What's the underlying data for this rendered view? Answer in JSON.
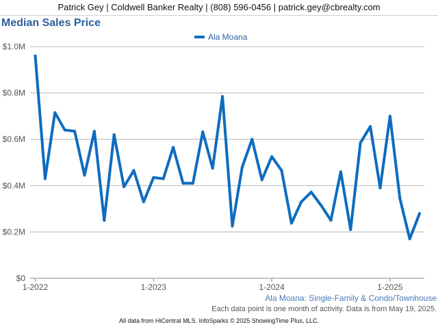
{
  "header": {
    "contact": "Patrick Gey | Coldwell Banker Realty | (808) 596-0456 | patrick.gey@cbrealty.com"
  },
  "chart_data": {
    "type": "line",
    "title": "Median Sales Price",
    "y_ticks": [
      "$0",
      "$0.2M",
      "$0.4M",
      "$0.6M",
      "$0.8M",
      "$1.0M"
    ],
    "ylim": [
      0,
      1000000
    ],
    "x_ticks": [
      "1-2022",
      "1-2023",
      "1-2024",
      "1-2025"
    ],
    "x_start": "2022-01",
    "grid": true,
    "legend_placement": "top-center",
    "series": [
      {
        "name": "Ala Moana",
        "color": "#0f6cbf",
        "values": [
          960000,
          430000,
          715000,
          640000,
          635000,
          445000,
          635000,
          250000,
          620000,
          395000,
          465000,
          330000,
          435000,
          430000,
          565000,
          410000,
          410000,
          632000,
          475000,
          785000,
          225000,
          480000,
          600000,
          425000,
          525000,
          465000,
          238000,
          330000,
          372000,
          315000,
          250000,
          460000,
          210000,
          585000,
          655000,
          390000,
          700000,
          345000,
          170000,
          280000
        ]
      }
    ]
  },
  "subtitle": "Ala Moana: Single-Family & Condo/Townhouse",
  "note": "Each data point is one month of activity. Data is from May 19, 2025.",
  "footer": "All data from HiCentral MLS. InfoSparks © 2025 ShowingTime Plus, LLC."
}
